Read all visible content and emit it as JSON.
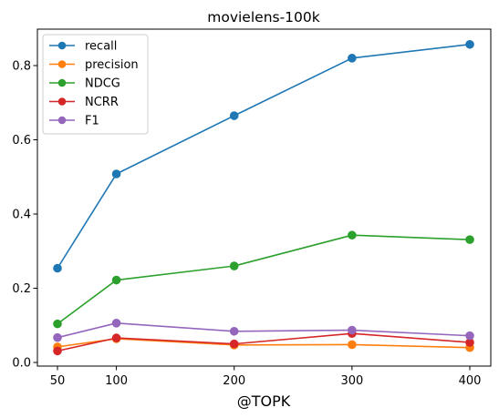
{
  "chart_data": {
    "type": "line",
    "title": "movielens-100k",
    "xlabel": "@TOPK",
    "ylabel": "",
    "x": [
      50,
      100,
      200,
      300,
      400
    ],
    "xticks": [
      "50",
      "100",
      "200",
      "300",
      "400"
    ],
    "yticks": [
      "0.0",
      "0.2",
      "0.4",
      "0.6",
      "0.8"
    ],
    "ylim": [
      0,
      0.9
    ],
    "grid": false,
    "legend_position": "top-left",
    "series": [
      {
        "name": "recall",
        "color": "#1f77b4",
        "values": [
          0.254,
          0.508,
          0.665,
          0.82,
          0.857
        ]
      },
      {
        "name": "precision",
        "color": "#ff7f0e",
        "values": [
          0.042,
          0.064,
          0.047,
          0.048,
          0.04
        ]
      },
      {
        "name": "NDCG",
        "color": "#2ca02c",
        "values": [
          0.104,
          0.222,
          0.26,
          0.343,
          0.331
        ]
      },
      {
        "name": "NCRR",
        "color": "#d62728",
        "values": [
          0.031,
          0.066,
          0.05,
          0.078,
          0.054
        ]
      },
      {
        "name": "F1",
        "color": "#9467bd",
        "values": [
          0.067,
          0.106,
          0.084,
          0.087,
          0.072
        ]
      }
    ]
  }
}
